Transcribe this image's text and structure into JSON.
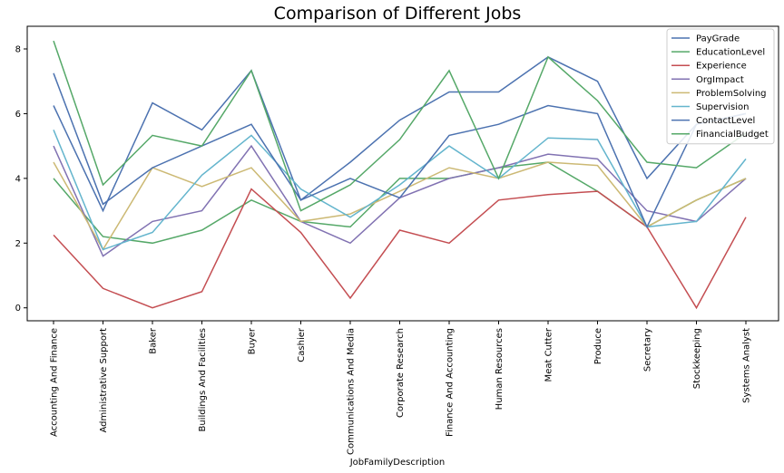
{
  "chart_data": {
    "type": "line",
    "title": "Comparison of Different Jobs",
    "xlabel": "JobFamilyDescription",
    "ylabel": "",
    "ylim": [
      -0.4,
      8.7
    ],
    "yticks": [
      0,
      2,
      4,
      6,
      8
    ],
    "grid": false,
    "legend_position": "top-right",
    "categories": [
      "Accounting And Finance",
      "Administrative Support",
      "Baker",
      "Buildings And Facilities",
      "Buyer",
      "Cashier",
      "Communications And Media",
      "Corporate Research",
      "Finance  And Accounting",
      "Human Resources",
      "Meat Cutter",
      "Produce",
      "Secretary",
      "Stockkeeping",
      "Systems Analyst"
    ],
    "series": [
      {
        "name": "PayGrade",
        "color": "#4c72b0",
        "values": [
          6.25,
          3.0,
          6.33,
          5.5,
          7.33,
          3.33,
          4.5,
          5.8,
          6.67,
          6.67,
          7.75,
          7.0,
          4.0,
          5.67,
          6.0
        ]
      },
      {
        "name": "EducationLevel",
        "color": "#55a868",
        "values": [
          4.0,
          2.2,
          2.0,
          2.4,
          3.33,
          2.67,
          2.5,
          4.0,
          4.0,
          4.33,
          4.5,
          3.6,
          2.5,
          3.33,
          4.0
        ]
      },
      {
        "name": "Experience",
        "color": "#c44e52",
        "values": [
          2.25,
          0.6,
          0.0,
          0.5,
          3.67,
          2.33,
          0.3,
          2.4,
          2.0,
          3.33,
          3.5,
          3.6,
          2.5,
          0.0,
          2.8
        ]
      },
      {
        "name": "OrgImpact",
        "color": "#8172b2",
        "values": [
          5.0,
          1.6,
          2.67,
          3.0,
          5.0,
          2.67,
          2.0,
          3.4,
          4.0,
          4.33,
          4.75,
          4.6,
          3.0,
          2.67,
          4.0
        ]
      },
      {
        "name": "ProblemSolving",
        "color": "#ccb974",
        "values": [
          4.5,
          1.8,
          4.33,
          3.75,
          4.33,
          2.67,
          2.9,
          3.6,
          4.33,
          4.0,
          4.5,
          4.4,
          2.5,
          3.33,
          4.0
        ]
      },
      {
        "name": "Supervision",
        "color": "#64b5cd",
        "values": [
          5.5,
          1.8,
          2.33,
          4.1,
          5.33,
          3.67,
          2.8,
          3.8,
          5.0,
          4.0,
          5.25,
          5.2,
          2.5,
          2.67,
          4.6
        ]
      },
      {
        "name": "ContactLevel",
        "color": "#4c72b0",
        "values": [
          7.25,
          3.2,
          4.33,
          5.0,
          5.67,
          3.33,
          4.0,
          3.4,
          5.33,
          5.67,
          6.25,
          6.0,
          2.5,
          5.67,
          6.0
        ]
      },
      {
        "name": "FinancialBudget",
        "color": "#55a868",
        "values": [
          8.25,
          3.8,
          5.33,
          5.0,
          7.33,
          3.0,
          3.8,
          5.2,
          7.33,
          4.0,
          7.75,
          6.4,
          4.5,
          4.33,
          5.4
        ]
      }
    ]
  }
}
